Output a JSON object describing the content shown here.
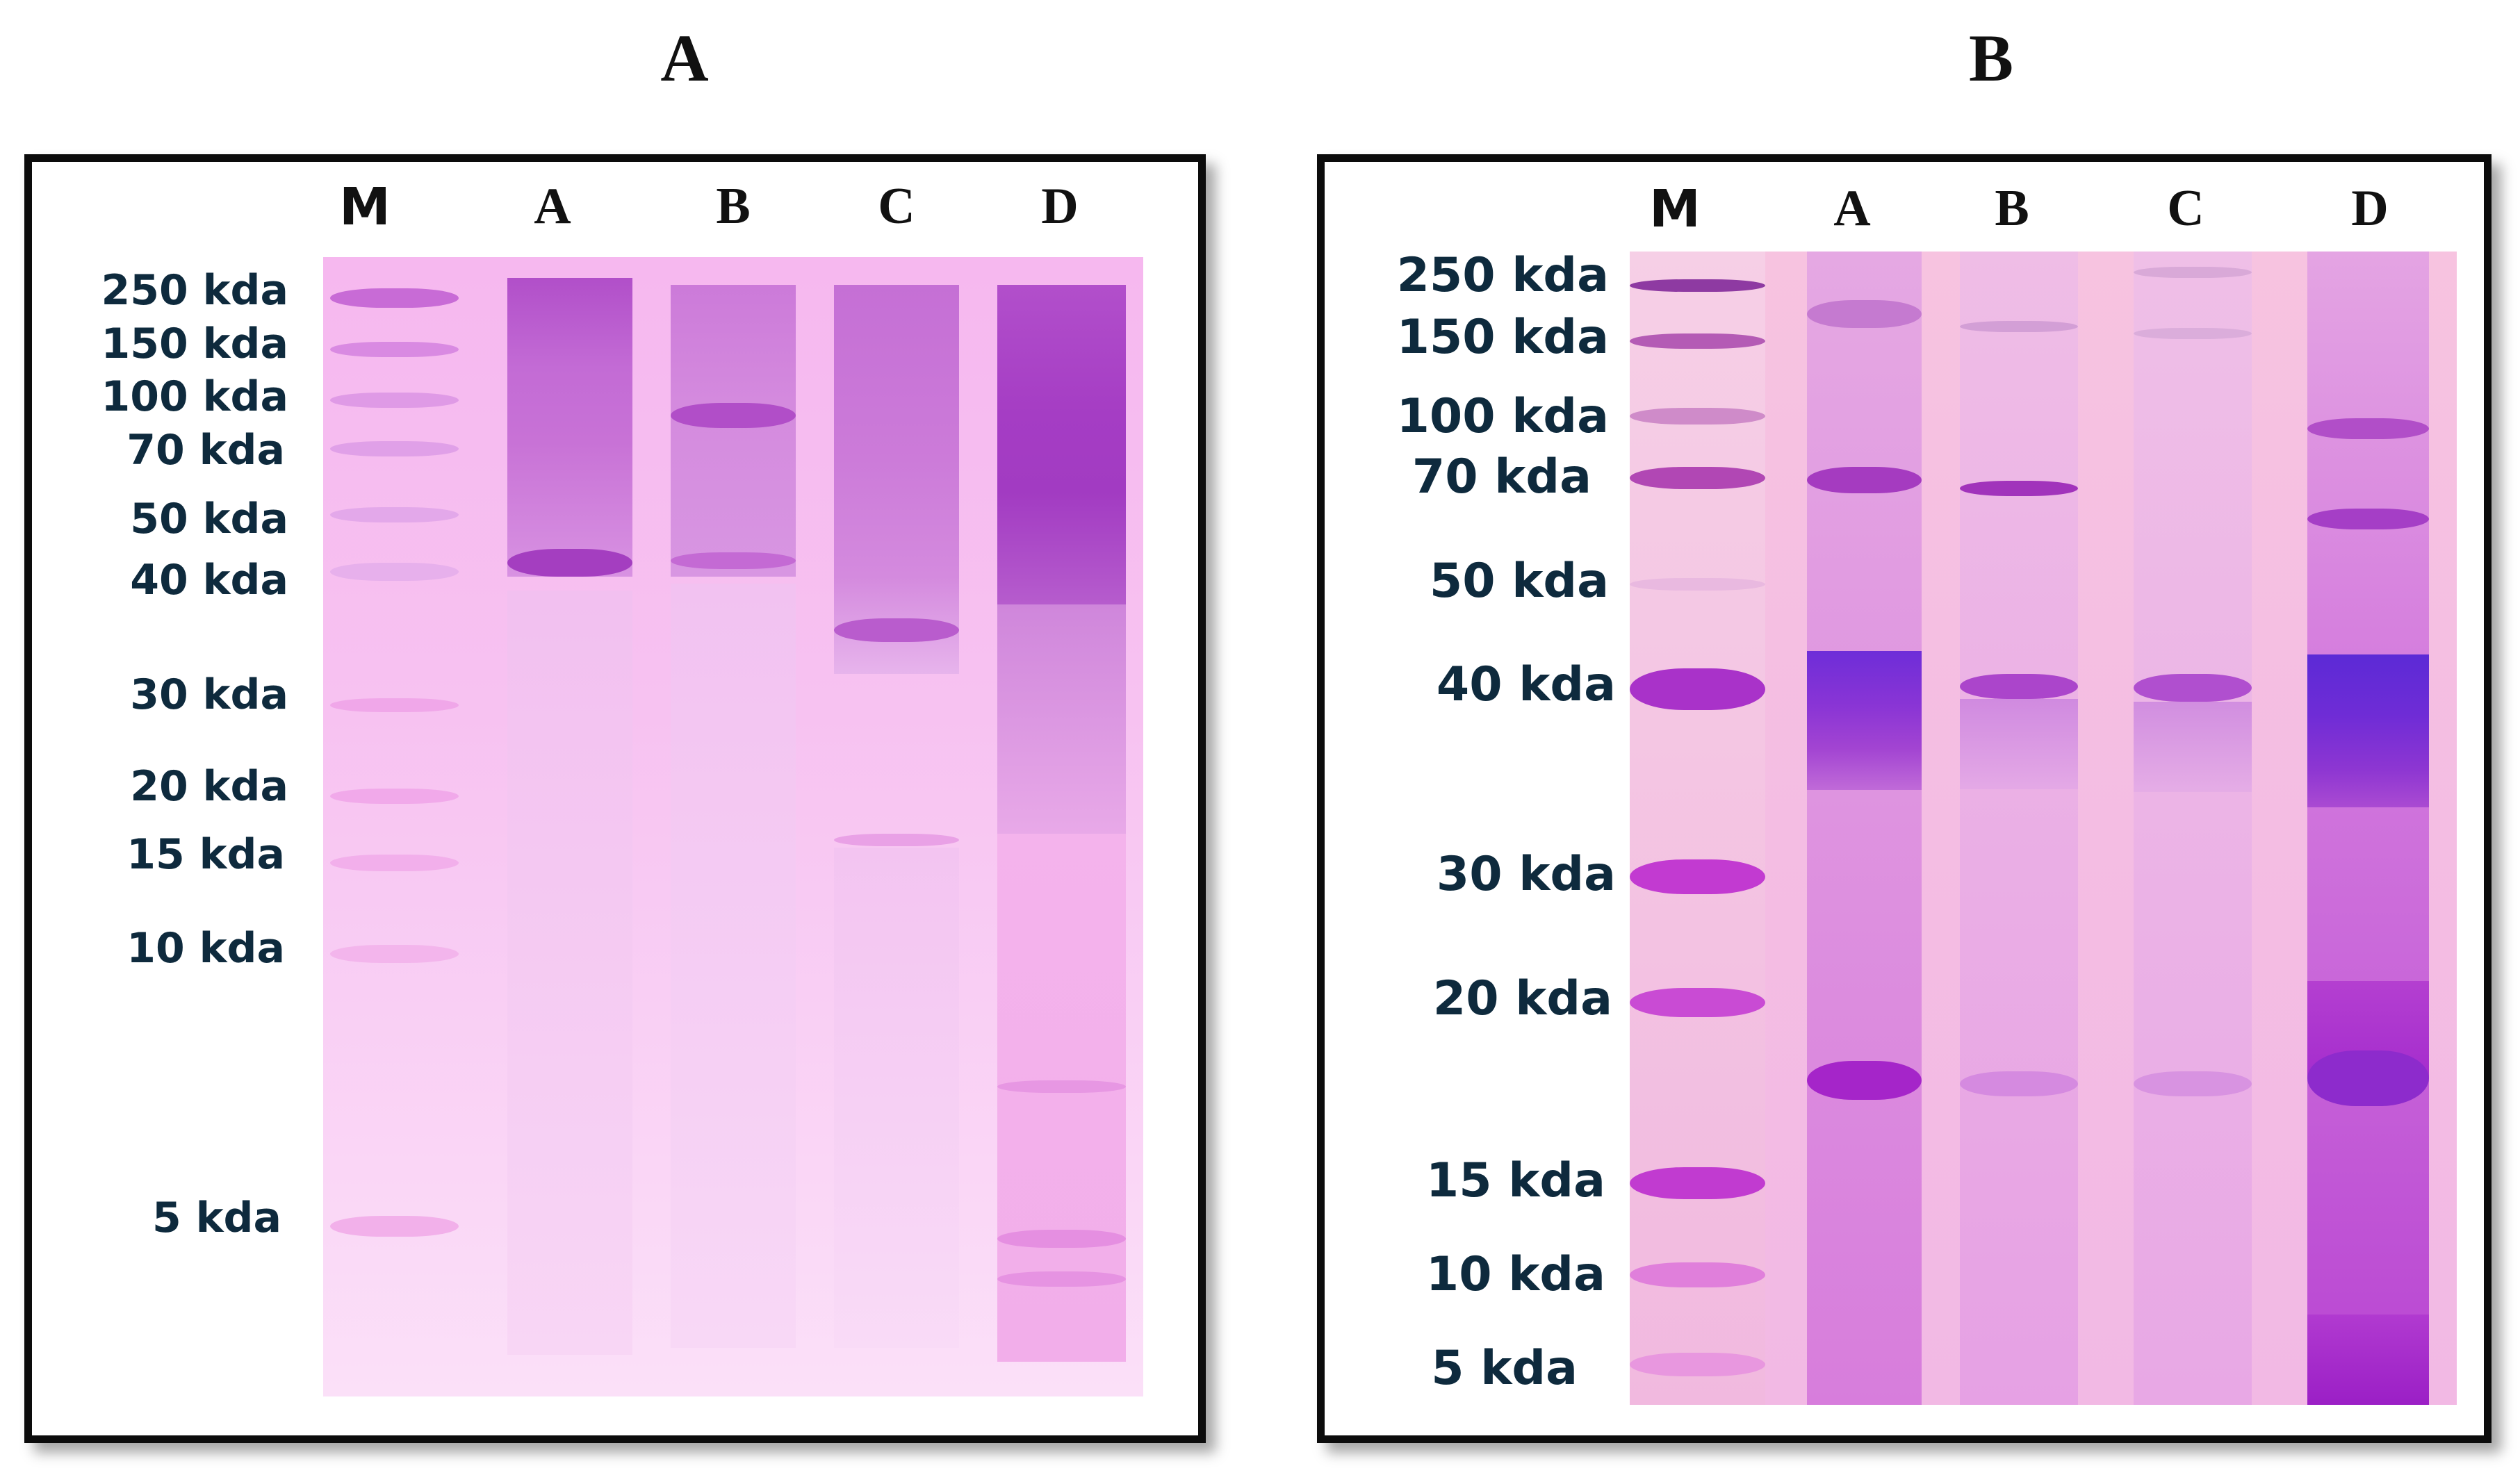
{
  "panels": [
    {
      "title": "A",
      "lane_labels": [
        "M",
        "A",
        "B",
        "C",
        "D"
      ],
      "markers": [
        "250 kda",
        "150 kda",
        "100 kda",
        "70 kda",
        "50 kda",
        "40 kda",
        "30 kda",
        "20 kda",
        "15 kda",
        "10 kda",
        "5 kda"
      ]
    },
    {
      "title": "B",
      "lane_labels": [
        "M",
        "A",
        "B",
        "C",
        "D"
      ],
      "markers": [
        "250 kda",
        "150 kda",
        "100 kda",
        "70 kda",
        "50 kda",
        "40 kda",
        "30 kda",
        "20 kda",
        "15 kda",
        "10 kda",
        "5 kda"
      ]
    }
  ],
  "colors": {
    "frame": "#0c0c0c",
    "marker_text": "#0e2a3d",
    "gel_a_background": "#f7c2f1",
    "gel_b_background": "#f4bde3",
    "band_dark": "#9b2fc9",
    "band_blue": "#6a2fd6"
  }
}
